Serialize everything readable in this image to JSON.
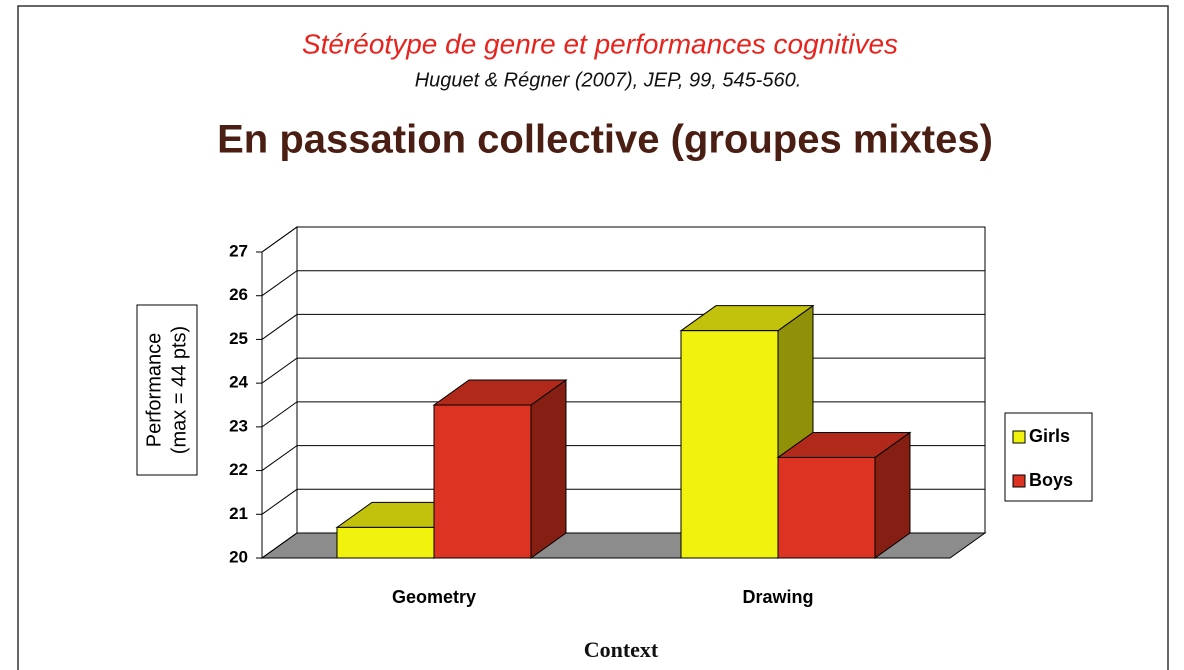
{
  "chart_data": {
    "type": "bar3d",
    "title": "Stéréotype de genre et performances cognitives",
    "subtitle": "Huguet & Régner (2007), JEP, 99, 545-560.",
    "heading": "En passation collective (groupes mixtes)",
    "ylabel": [
      "Performance",
      "(max = 44 pts)"
    ],
    "xlabel": "Context",
    "categories": [
      "Geometry",
      "Drawing"
    ],
    "series": [
      {
        "name": "Girls",
        "color": "#f2f20f",
        "values": [
          20.7,
          25.2
        ]
      },
      {
        "name": "Boys",
        "color": "#dd3322",
        "values": [
          23.5,
          22.3
        ]
      }
    ],
    "ylim": [
      20,
      27
    ],
    "yticks": [
      20,
      21,
      22,
      23,
      24,
      25,
      26,
      27
    ],
    "grid": true,
    "legend": "right"
  }
}
